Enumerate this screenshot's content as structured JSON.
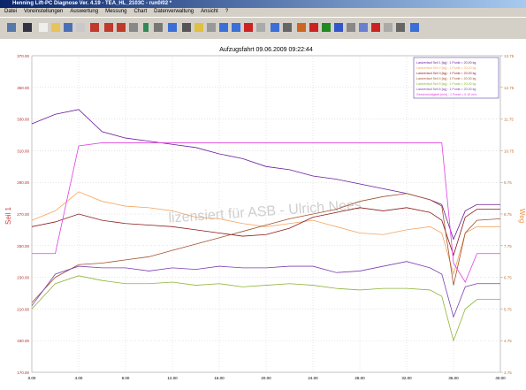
{
  "window": {
    "title": "Henning Lift-PC Diagnose Ver. 4.19 - TEA_HL_2103C - run0/02 *"
  },
  "menu": [
    "Datei",
    "Voreinstellungen",
    "Auswertung",
    "Messung",
    "Chart",
    "Datenverwaltung",
    "Ansicht",
    "?"
  ],
  "watermark": "lizensiert für ASB - Ulrich Nees",
  "chart_data": {
    "type": "line",
    "title": "Aufzugsfahrt 09.06.2009 09:22:44",
    "ylabel": "Seil 1",
    "y2label": "Weg",
    "x": [
      0,
      2,
      4,
      6,
      8,
      10,
      12,
      14,
      16,
      18,
      20,
      22,
      24,
      26,
      28,
      30,
      32,
      34,
      35,
      36,
      37,
      38,
      40
    ],
    "xlim": [
      0,
      40
    ],
    "xticks": [
      {
        "value": 0,
        "label": "0.00"
      },
      {
        "value": 4,
        "label": "4.00"
      },
      {
        "value": 8,
        "label": "8.00"
      },
      {
        "value": 12,
        "label": "12.00"
      },
      {
        "value": 16,
        "label": "16.00"
      },
      {
        "value": 20,
        "label": "20.00"
      },
      {
        "value": 24,
        "label": "24.00"
      },
      {
        "value": 28,
        "label": "28.00"
      },
      {
        "value": 32,
        "label": "32.00"
      },
      {
        "value": 36,
        "label": "36.00"
      },
      {
        "value": 40,
        "label": "40.00"
      }
    ],
    "ylim": [
      170,
      370
    ],
    "yticks": [
      {
        "value": 170,
        "label": "170.00"
      },
      {
        "value": 190,
        "label": "190.00"
      },
      {
        "value": 210,
        "label": "210.00"
      },
      {
        "value": 230,
        "label": "230.00"
      },
      {
        "value": 250,
        "label": "250.00"
      },
      {
        "value": 270,
        "label": "270.00"
      },
      {
        "value": 290,
        "label": "290.00"
      },
      {
        "value": 310,
        "label": "310.00"
      },
      {
        "value": 330,
        "label": "330.00"
      },
      {
        "value": 350,
        "label": "350.00"
      },
      {
        "value": 370,
        "label": "370.00"
      }
    ],
    "y2lim": [
      3.75,
      13.75
    ],
    "y2ticks": [
      3.75,
      4.75,
      5.75,
      6.75,
      7.75,
      8.75,
      9.75,
      10.75,
      11.75,
      12.75,
      13.75
    ],
    "grid": true,
    "legend": "top-right",
    "series": [
      {
        "name": "Lastverlauf Seil 1 [kg] : 1 Punkt = 20.00 kg",
        "color": "#6a1b9a",
        "values": [
          327,
          333,
          336,
          322,
          318,
          316,
          314,
          312,
          308,
          305,
          300,
          298,
          294,
          292,
          289,
          286,
          283,
          279,
          276,
          254,
          272,
          276,
          276
        ]
      },
      {
        "name": "Lastverlauf Seil 2 [kg] : 1 Punkt = 20.00 kg",
        "color": "#f4a460",
        "values": [
          266,
          272,
          284,
          278,
          275,
          274,
          272,
          268,
          267,
          264,
          262,
          264,
          266,
          262,
          258,
          257,
          260,
          262,
          258,
          232,
          258,
          262,
          262
        ]
      },
      {
        "name": "Lastverlauf Seil 3 [kg] : 1 Punkt = 20.00 kg",
        "color": "#8b1a1a",
        "values": [
          262,
          265,
          270,
          266,
          264,
          263,
          262,
          260,
          258,
          256,
          257,
          261,
          268,
          271,
          274,
          272,
          274,
          271,
          266,
          244,
          268,
          273,
          273
        ]
      },
      {
        "name": "Lastverlauf Seil 4 [kg] : 1 Punkt = 20.00 kg",
        "color": "#a0522d",
        "values": [
          214,
          230,
          238,
          239,
          241,
          243,
          247,
          251,
          255,
          259,
          263,
          267,
          270,
          273,
          278,
          281,
          283,
          279,
          275,
          225,
          258,
          266,
          267
        ]
      },
      {
        "name": "Lastverlauf Seil 5 [kg] : 1 Punkt = 20.00 kg",
        "color": "#8db33a",
        "values": [
          210,
          226,
          231,
          228,
          226,
          226,
          227,
          225,
          226,
          224,
          225,
          226,
          225,
          223,
          222,
          223,
          223,
          222,
          218,
          190,
          210,
          216,
          216
        ]
      },
      {
        "name": "Lastverlauf Seil 6 [kg] : 1 Punkt = 20.00 kg",
        "color": "#7b3fb0",
        "values": [
          212,
          232,
          237,
          236,
          236,
          234,
          236,
          235,
          237,
          236,
          236,
          237,
          237,
          233,
          234,
          237,
          240,
          236,
          232,
          205,
          224,
          226,
          226
        ]
      },
      {
        "name": "Geschwindigkeit [m/s] : 1 Punkt = 0.10 m/s",
        "color": "#e040e0",
        "axis": "y2",
        "values": [
          7.5,
          7.5,
          10.9,
          11.0,
          11.0,
          11.0,
          11.0,
          11.0,
          11.0,
          11.0,
          11.0,
          11.0,
          11.0,
          11.0,
          11.0,
          11.0,
          11.0,
          11.0,
          11.0,
          7.2,
          6.6,
          7.5,
          7.5
        ]
      }
    ]
  }
}
